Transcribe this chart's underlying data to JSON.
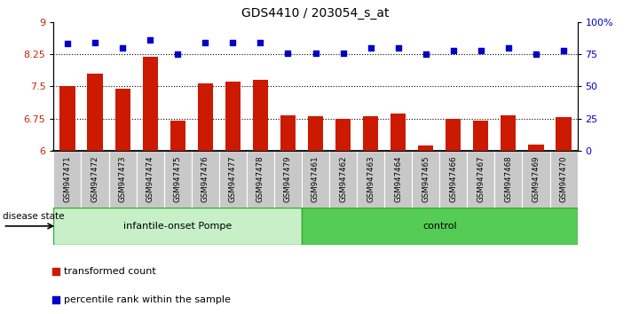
{
  "title": "GDS4410 / 203054_s_at",
  "samples": [
    "GSM947471",
    "GSM947472",
    "GSM947473",
    "GSM947474",
    "GSM947475",
    "GSM947476",
    "GSM947477",
    "GSM947478",
    "GSM947479",
    "GSM947461",
    "GSM947462",
    "GSM947463",
    "GSM947464",
    "GSM947465",
    "GSM947466",
    "GSM947467",
    "GSM947468",
    "GSM947469",
    "GSM947470"
  ],
  "bar_values": [
    7.5,
    7.8,
    7.45,
    8.18,
    6.7,
    7.56,
    7.62,
    7.65,
    6.83,
    6.8,
    6.75,
    6.8,
    6.87,
    6.12,
    6.75,
    6.7,
    6.83,
    6.15,
    6.78
  ],
  "dot_values": [
    83,
    84,
    80,
    86,
    75,
    84,
    84,
    84,
    76,
    76,
    76,
    80,
    80,
    75,
    78,
    78,
    80,
    75,
    78
  ],
  "group1_samples": 9,
  "group2_samples": 10,
  "group1_label": "infantile-onset Pompe",
  "group2_label": "control",
  "ylim_left": [
    6,
    9
  ],
  "ylim_right": [
    0,
    100
  ],
  "yticks_left": [
    6,
    6.75,
    7.5,
    8.25,
    9
  ],
  "ytick_labels_left": [
    "6",
    "6.75",
    "7.5",
    "8.25",
    "9"
  ],
  "yticks_right": [
    0,
    25,
    50,
    75,
    100
  ],
  "ytick_labels_right": [
    "0",
    "25",
    "50",
    "75",
    "100%"
  ],
  "bar_color": "#cc1a00",
  "dot_color": "#0000cc",
  "hline_values": [
    6.75,
    7.5,
    8.25
  ],
  "disease_state_label": "disease state",
  "legend_items": [
    {
      "label": "transformed count",
      "color": "#cc1a00"
    },
    {
      "label": "percentile rank within the sample",
      "color": "#0000cc"
    }
  ],
  "group1_color": "#c8f0c8",
  "group2_color": "#55cc55",
  "xtick_bg_color": "#c8c8c8",
  "tick_label_color_left": "#cc2200",
  "tick_label_color_right": "#0000cc"
}
